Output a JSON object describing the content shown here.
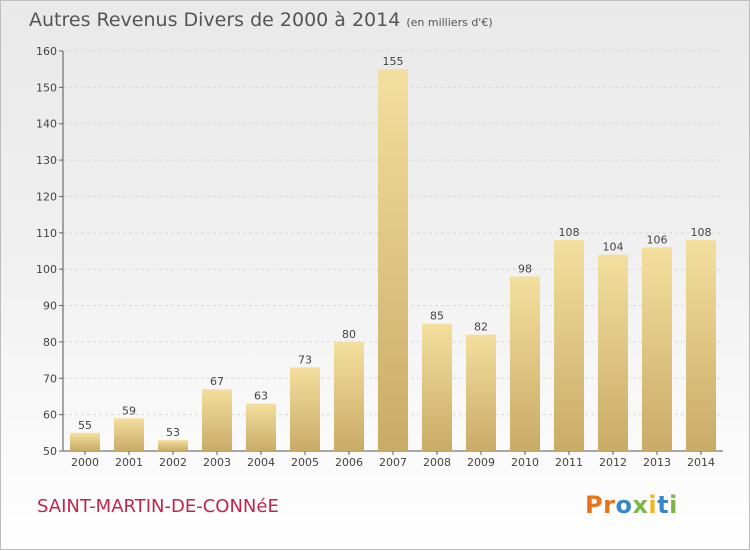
{
  "title": "Autres Revenus Divers de 2000 à 2014",
  "subtitle": "(en milliers d'€)",
  "commune": "SAINT-MARTIN-DE-CONNéE",
  "brand": {
    "text": "Proxiti",
    "letter_colors": [
      "#e8731a",
      "#e8731a",
      "#3a86c8",
      "#7ab648",
      "#f2b51c",
      "#3a86c8",
      "#7ab648"
    ]
  },
  "colors": {
    "bar_top": "#f3df9e",
    "bar_bottom": "#c9ab66",
    "title": "#555555",
    "commune": "#c2254a"
  },
  "chart_data": {
    "type": "bar",
    "categories": [
      "2000",
      "2001",
      "2002",
      "2003",
      "2004",
      "2005",
      "2006",
      "2007",
      "2008",
      "2009",
      "2010",
      "2011",
      "2012",
      "2013",
      "2014"
    ],
    "values": [
      55,
      59,
      53,
      67,
      63,
      73,
      80,
      155,
      85,
      82,
      98,
      108,
      104,
      106,
      108
    ],
    "ylim": [
      50,
      160
    ],
    "yticks": [
      50,
      60,
      70,
      80,
      90,
      100,
      110,
      120,
      130,
      140,
      150,
      160
    ],
    "grid": true
  }
}
